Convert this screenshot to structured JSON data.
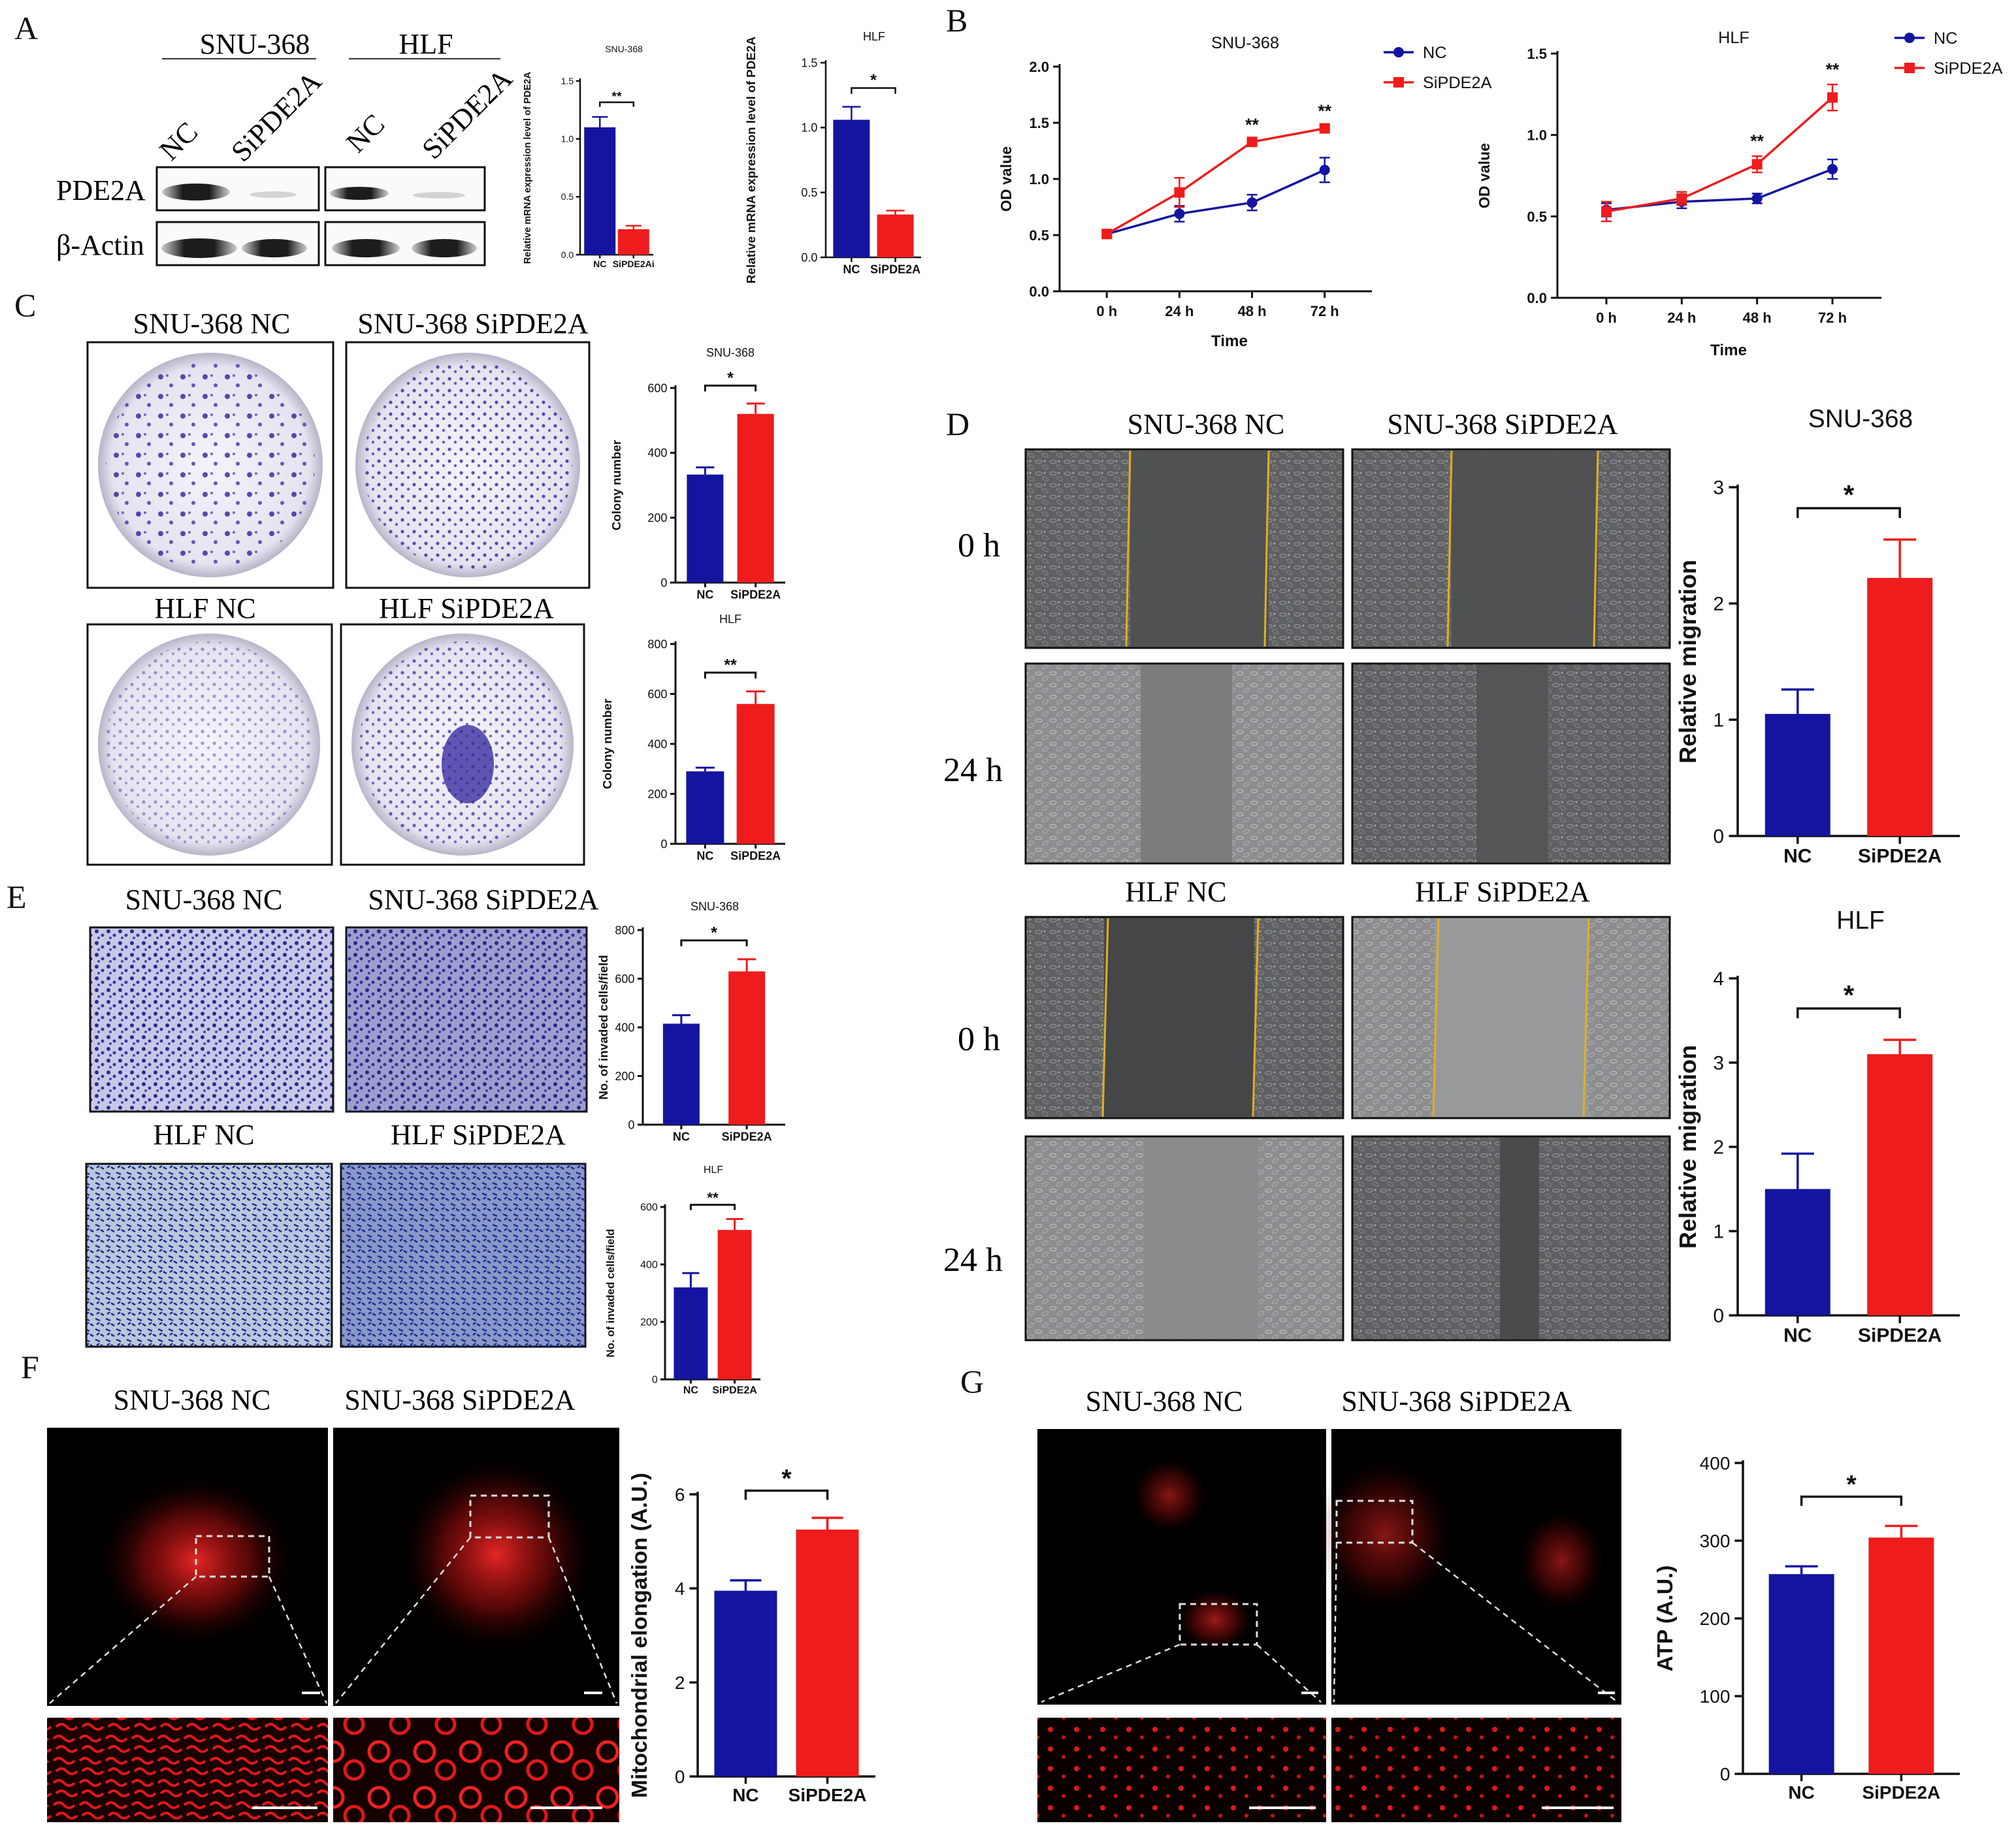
{
  "colors": {
    "nc": "#1414a0",
    "si": "#ee1c1c",
    "axis": "#111111",
    "yellow_line": "#e0b020"
  },
  "panel_letters": [
    "A",
    "B",
    "C",
    "D",
    "E",
    "F",
    "G"
  ],
  "panel_a": {
    "headers": [
      "SNU-368",
      "HLF"
    ],
    "lanes": [
      "NC",
      "SiPDE2A",
      "NC",
      "SiPDE2A"
    ],
    "rows": [
      "PDE2A",
      "β-Actin"
    ]
  },
  "charts": {
    "a1": {
      "type": "bar",
      "title": "SNU-368",
      "ylabel": "Relative mRNA expression level of PDE2A",
      "categories": [
        "NC",
        "SiPDE2Ai"
      ],
      "values": [
        1.1,
        0.22
      ],
      "errors": [
        0.09,
        0.03
      ],
      "ylim": [
        0,
        1.5
      ],
      "ticks": [
        "0.0",
        "0.5",
        "1.0",
        "1.5"
      ],
      "tickvals": [
        0,
        0.5,
        1.0,
        1.5
      ],
      "sig": "**"
    },
    "a2": {
      "type": "bar",
      "title": "HLF",
      "ylabel": "Relative mRNA expression level of PDE2A",
      "categories": [
        "NC",
        "SiPDE2A"
      ],
      "values": [
        1.06,
        0.33
      ],
      "errors": [
        0.1,
        0.03
      ],
      "ylim": [
        0,
        1.5
      ],
      "ticks": [
        "0.0",
        "0.5",
        "1.0",
        "1.5"
      ],
      "tickvals": [
        0,
        0.5,
        1.0,
        1.5
      ],
      "sig": "*"
    },
    "b1": {
      "type": "line",
      "title": "SNU-368",
      "xlabel": "Time",
      "ylabel": "OD value",
      "x": [
        "0 h",
        "24 h",
        "48 h",
        "72 h"
      ],
      "series": [
        {
          "name": "NC",
          "values": [
            0.51,
            0.69,
            0.79,
            1.08
          ],
          "errors": [
            0.03,
            0.07,
            0.07,
            0.11
          ]
        },
        {
          "name": "SiPDE2A",
          "values": [
            0.51,
            0.88,
            1.33,
            1.45
          ],
          "errors": [
            0.03,
            0.13,
            0.02,
            0.02
          ]
        }
      ],
      "ylim": [
        0,
        2.0
      ],
      "ticks": [
        "0.0",
        "0.5",
        "1.0",
        "1.5",
        "2.0"
      ],
      "tickvals": [
        0,
        0.5,
        1.0,
        1.5,
        2.0
      ],
      "sig": [
        "",
        "",
        "**",
        "**"
      ],
      "legend_labels": [
        "NC",
        "SiPDE2A"
      ]
    },
    "b2": {
      "type": "line",
      "title": "HLF",
      "xlabel": "Time",
      "ylabel": "OD value",
      "x": [
        "0 h",
        "24 h",
        "48 h",
        "72 h"
      ],
      "series": [
        {
          "name": "NC",
          "values": [
            0.54,
            0.59,
            0.61,
            0.79
          ],
          "errors": [
            0.04,
            0.04,
            0.03,
            0.06
          ]
        },
        {
          "name": "SiPDE2A",
          "values": [
            0.53,
            0.61,
            0.82,
            1.23
          ],
          "errors": [
            0.06,
            0.04,
            0.05,
            0.08
          ]
        }
      ],
      "ylim": [
        0,
        1.5
      ],
      "ticks": [
        "0.0",
        "0.5",
        "1.0",
        "1.5"
      ],
      "tickvals": [
        0,
        0.5,
        1.0,
        1.5
      ],
      "sig": [
        "",
        "",
        "**",
        "**"
      ],
      "legend_labels": [
        "NC",
        "SiPDE2A"
      ]
    },
    "c1": {
      "type": "bar",
      "title": "SNU-368",
      "ylabel": "Colony number",
      "categories": [
        "NC",
        "SiPDE2A"
      ],
      "values": [
        333,
        520
      ],
      "errors": [
        22,
        32
      ],
      "ylim": [
        0,
        600
      ],
      "ticks": [
        "0",
        "200",
        "400",
        "600"
      ],
      "tickvals": [
        0,
        200,
        400,
        600
      ],
      "sig": "*"
    },
    "c2": {
      "type": "bar",
      "title": "HLF",
      "ylabel": "Colony number",
      "categories": [
        "NC",
        "SiPDE2A"
      ],
      "values": [
        290,
        560
      ],
      "errors": [
        15,
        50
      ],
      "ylim": [
        0,
        800
      ],
      "ticks": [
        "0",
        "200",
        "400",
        "600",
        "800"
      ],
      "tickvals": [
        0,
        200,
        400,
        600,
        800
      ],
      "sig": "**"
    },
    "d1": {
      "type": "bar",
      "title": "SNU-368",
      "ylabel": "Relative migration",
      "categories": [
        "NC",
        "SiPDE2A"
      ],
      "values": [
        1.05,
        2.22
      ],
      "errors": [
        0.21,
        0.33
      ],
      "ylim": [
        0,
        3
      ],
      "ticks": [
        "0",
        "1",
        "2",
        "3"
      ],
      "tickvals": [
        0,
        1,
        2,
        3
      ],
      "sig": "*"
    },
    "d2": {
      "type": "bar",
      "title": "HLF",
      "ylabel": "Relative migration",
      "categories": [
        "NC",
        "SiPDE2A"
      ],
      "values": [
        1.5,
        3.1
      ],
      "errors": [
        0.42,
        0.17
      ],
      "ylim": [
        0,
        4
      ],
      "ticks": [
        "0",
        "1",
        "2",
        "3",
        "4"
      ],
      "tickvals": [
        0,
        1,
        2,
        3,
        4
      ],
      "sig": "*"
    },
    "e1": {
      "type": "bar",
      "title": "SNU-368",
      "ylabel": "No. of invaded cells/field",
      "categories": [
        "NC",
        "SiPDE2A"
      ],
      "values": [
        415,
        630
      ],
      "errors": [
        35,
        50
      ],
      "ylim": [
        0,
        800
      ],
      "ticks": [
        "0",
        "200",
        "400",
        "600",
        "800"
      ],
      "tickvals": [
        0,
        200,
        400,
        600,
        800
      ],
      "sig": "*"
    },
    "e2": {
      "type": "bar",
      "title": "HLF",
      "ylabel": "No. of invaded cells/field",
      "categories": [
        "NC",
        "SiPDE2A"
      ],
      "values": [
        320,
        520
      ],
      "errors": [
        50,
        38
      ],
      "ylim": [
        0,
        600
      ],
      "ticks": [
        "0",
        "200",
        "400",
        "600"
      ],
      "tickvals": [
        0,
        200,
        400,
        600
      ],
      "sig": "**"
    },
    "f1": {
      "type": "bar",
      "title": "",
      "ylabel": "Mitochondrial elongation (A.U.)",
      "categories": [
        "NC",
        "SiPDE2A"
      ],
      "values": [
        3.95,
        5.25
      ],
      "errors": [
        0.22,
        0.25
      ],
      "ylim": [
        0,
        6
      ],
      "ticks": [
        "0",
        "2",
        "4",
        "6"
      ],
      "tickvals": [
        0,
        2,
        4,
        6
      ],
      "sig": "*"
    },
    "g1": {
      "type": "bar",
      "title": "",
      "ylabel": "ATP (A.U.)",
      "categories": [
        "NC",
        "SiPDE2A"
      ],
      "values": [
        257,
        304
      ],
      "errors": [
        10,
        15
      ],
      "ylim": [
        0,
        400
      ],
      "ticks": [
        "0",
        "100",
        "200",
        "300",
        "400"
      ],
      "tickvals": [
        0,
        100,
        200,
        300,
        400
      ],
      "sig": "*"
    }
  },
  "image_labels": {
    "c": [
      "SNU-368 NC",
      "SNU-368 SiPDE2A",
      "HLF NC",
      "HLF SiPDE2A"
    ],
    "d": [
      "SNU-368 NC",
      "SNU-368 SiPDE2A",
      "HLF NC",
      "HLF SiPDE2A"
    ],
    "d_rows": [
      "0 h",
      "24 h",
      "0 h",
      "24 h"
    ],
    "e": [
      "SNU-368 NC",
      "SNU-368 SiPDE2A",
      "HLF NC",
      "HLF SiPDE2A"
    ],
    "f": [
      "SNU-368 NC",
      "SNU-368 SiPDE2A"
    ],
    "g": [
      "SNU-368 NC",
      "SNU-368 SiPDE2A"
    ]
  }
}
